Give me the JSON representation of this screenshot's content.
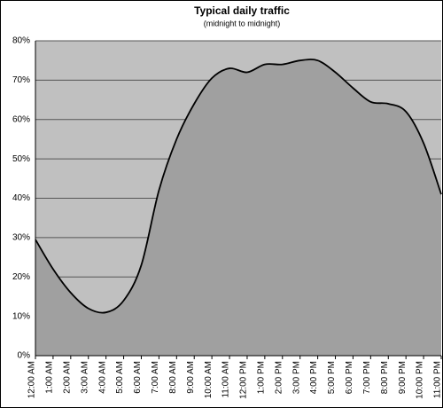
{
  "chart_data": {
    "type": "area",
    "title": "Typical daily traffic",
    "subtitle": "(midnight to midnight)",
    "categories": [
      "12:00 AM",
      "1:00 AM",
      "2:00 AM",
      "3:00 AM",
      "4:00 AM",
      "5:00 AM",
      "6:00 AM",
      "7:00 AM",
      "8:00 AM",
      "9:00 AM",
      "10:00 AM",
      "11:00 AM",
      "12:00 PM",
      "1:00 PM",
      "2:00 PM",
      "3:00 PM",
      "4:00 PM",
      "5:00 PM",
      "6:00 PM",
      "7:00 PM",
      "8:00 PM",
      "9:00 PM",
      "10:00 PM",
      "11:00 PM"
    ],
    "values": [
      29.5,
      22,
      16,
      12,
      11,
      14,
      23,
      42,
      55,
      64,
      70.5,
      73,
      72,
      74,
      74,
      75,
      75,
      72,
      68,
      64.5,
      64,
      62,
      54,
      41
    ],
    "color": "#a0a0a0",
    "line_color": "#000000",
    "background": "#c0c0c0",
    "ylim": [
      0,
      80
    ],
    "yticks": [
      {
        "value": 0,
        "label": "0%"
      },
      {
        "value": 10,
        "label": "10%"
      },
      {
        "value": 20,
        "label": "20%"
      },
      {
        "value": 30,
        "label": "30%"
      },
      {
        "value": 40,
        "label": "40%"
      },
      {
        "value": 50,
        "label": "50%"
      },
      {
        "value": 60,
        "label": "60%"
      },
      {
        "value": 70,
        "label": "70%"
      },
      {
        "value": 80,
        "label": "80%"
      }
    ],
    "grid": true
  }
}
